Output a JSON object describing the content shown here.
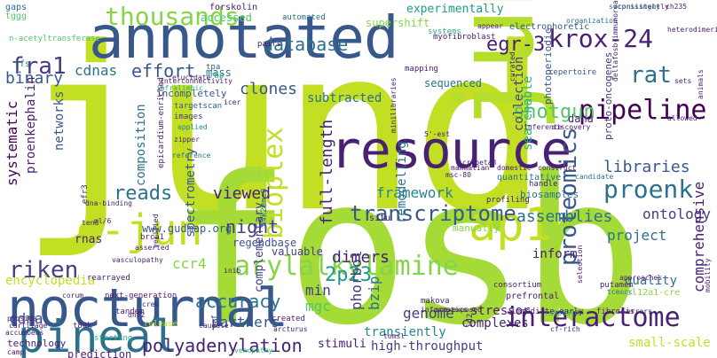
{
  "palette": {
    "yellow_green": "#c2df23",
    "lime": "#86d549",
    "green": "#52c569",
    "teal_green": "#2ab07f",
    "teal": "#1e9b8a",
    "blue_teal": "#25858e",
    "steel_blue": "#2d708e",
    "slate_blue": "#38588c",
    "indigo": "#433e85",
    "purple": "#482173",
    "deep_purple": "#440154"
  },
  "words": [
    "jund",
    "fosb",
    "junb",
    "annotated",
    "resource",
    "nocturnal",
    "c-jun",
    "pineal",
    "ap1",
    "fra1",
    "krox-24",
    "thousands",
    "database",
    "egr-3",
    "rat",
    "pipeline",
    "proenk",
    "arylalkylamine",
    "interactome",
    "bioplex",
    "riken",
    "proteomics",
    "transcriptome",
    "shotgun",
    "libraries",
    "assemblies",
    "framework",
    "night",
    "viewed",
    "reads",
    "2p23",
    "dimers",
    "accuracy",
    "mgc",
    "min",
    "genome",
    "polyadenylation",
    "partners",
    "encyclopedia",
    "cdna",
    "ccr4",
    "clones",
    "effort",
    "cdnas",
    "binary",
    "systematic",
    "networks",
    "proenkephalin",
    "composition",
    "spectrometry",
    "full-length",
    "remodelling",
    "collection",
    "searchable",
    "ontology",
    "complementary",
    "comprehensive",
    "project",
    "bzip",
    "phorbol",
    "inform",
    "quality",
    "stressor",
    "complexes",
    "high-throughput",
    "small-scale",
    "transiently",
    "subtracted",
    "mass",
    "supershift",
    "forskolin",
    "accessed",
    "experimentally",
    "gaps",
    "tggg",
    "n-acetyltransferase",
    "tfs",
    "clues",
    "integration",
    "globally",
    "targetscan",
    "images",
    "applied",
    "zipper",
    "reference",
    "incompletely",
    "www.gudmap.org",
    "rnas",
    "situ",
    "tpa",
    "rbp",
    "pairs",
    "mapping",
    "sequenced",
    "amygdala",
    "automated",
    "myofibroblast",
    "electrophoretic",
    "organization",
    "repertoire",
    "photoperiodic",
    "proto-oncogenes",
    "dana",
    "h4k20me0",
    "tcrvbeta8",
    "mammalian",
    "domestic",
    "profiling",
    "quantitative",
    "biosamples",
    "candidate",
    "construct",
    "manually",
    "regendbase",
    "valuable",
    "brca1",
    "prediction",
    "technology",
    "camp",
    "accumbens",
    "tandem",
    "stimuli",
    "rs539514",
    "fibrosis",
    "approaches",
    "putamen",
    "tceanc",
    "col12a1-cre",
    "errors",
    "cf-rich",
    "prefrontal",
    "immediate-early",
    "makova",
    "id2",
    "pre-exposed",
    "informatics",
    "consortium",
    "selection",
    "created",
    "arcturus",
    "tomsl",
    "venopathy",
    "creb",
    "rearrayed",
    "next-generation",
    "vasculopathy",
    "t80k",
    "cartilage",
    "phosida",
    "starting",
    "caudate",
    "release",
    "5'-est",
    "minilibraries",
    "inference",
    "discovery",
    "handle",
    "ch235",
    "heterodimeric",
    "sets",
    "consistently",
    "surprisingly",
    "deltafosb-immunoreactive",
    "animals",
    "mobility",
    "elucidate",
    "interconnectivity",
    "infralimbic",
    "efr3",
    "epicardium-enriched",
    "icer",
    "curated",
    "appear",
    "systems",
    "inib",
    "orf",
    "dnf2",
    "msc-80",
    "allowed",
    "corum",
    "verified",
    "tend",
    "ml/6",
    "dna-binding",
    "asserted",
    "rhamoa",
    "omega3",
    "importantly",
    "2p22-p23",
    "evolutionary",
    "shift",
    "elements",
    "entire",
    "accurate",
    "characterize",
    "transformation",
    "vast",
    "decoded",
    "scale",
    "atl1",
    "rhemac2",
    "forming",
    "lewis",
    "expanded",
    "hybridization",
    "amygdala",
    "1-k",
    "tsa",
    "recently",
    "genomic",
    "kinase"
  ]
}
